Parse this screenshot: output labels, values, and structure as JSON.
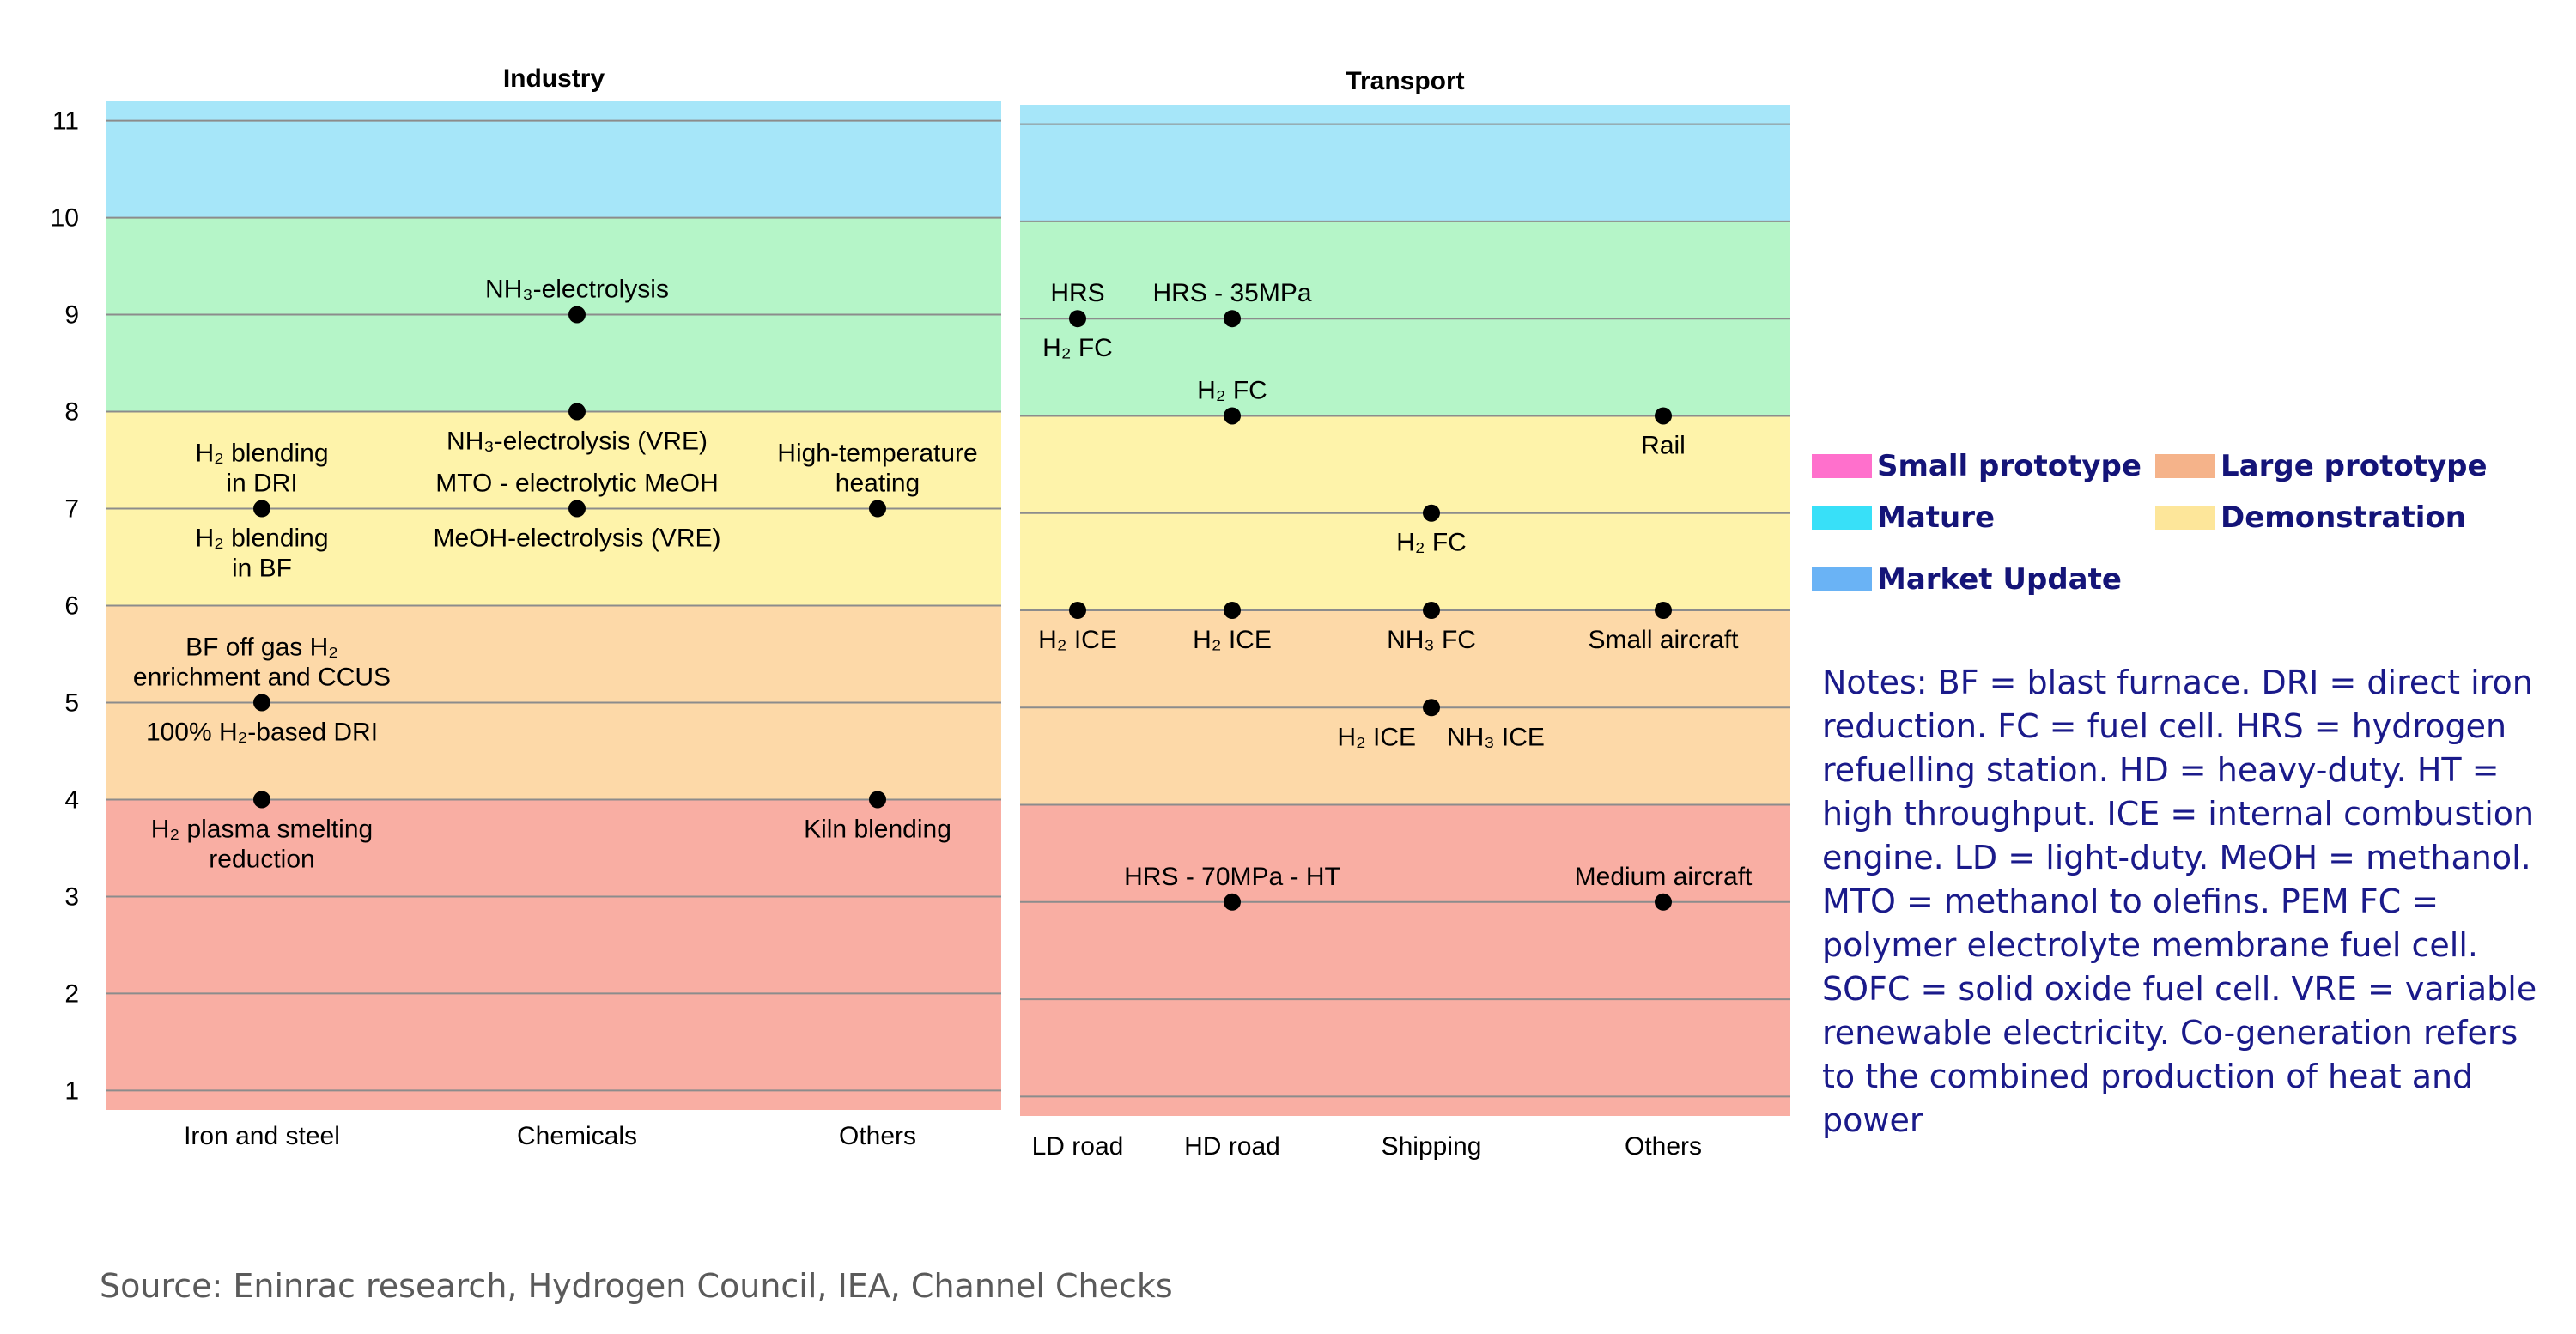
{
  "chart_data": {
    "type": "scatter",
    "y_axis": {
      "ticks": [
        "1",
        "2",
        "3",
        "4",
        "5",
        "6",
        "7",
        "8",
        "9",
        "10",
        "11"
      ],
      "range": [
        0.8,
        11.2
      ]
    },
    "bands": [
      {
        "name": "Small prototype",
        "from": 0.8,
        "to": 4,
        "color": "#f9aea3"
      },
      {
        "name": "Large prototype",
        "from": 4,
        "to": 6,
        "color": "#fdd9a8"
      },
      {
        "name": "Demonstration",
        "from": 6,
        "to": 8,
        "color": "#fef3aa"
      },
      {
        "name": "Mature",
        "from": 8,
        "to": 10,
        "color": "#b5f5c8"
      },
      {
        "name": "Market Update",
        "from": 10,
        "to": 11.2,
        "color": "#a6e6f9"
      }
    ],
    "panels": [
      {
        "title": "Industry",
        "categories": [
          "Iron and steel",
          "Chemicals",
          "Others"
        ],
        "points": [
          {
            "category": 0,
            "y": 7,
            "labels": [
              {
                "text": "H₂ blending\nin DRI",
                "pos": "above"
              },
              {
                "text": "H₂ blending\nin BF",
                "pos": "below"
              }
            ]
          },
          {
            "category": 0,
            "y": 5,
            "labels": [
              {
                "text": "BF off gas H₂\nenrichment and CCUS",
                "pos": "above"
              },
              {
                "text": "100% H₂-based DRI",
                "pos": "below"
              }
            ]
          },
          {
            "category": 0,
            "y": 4,
            "labels": [
              {
                "text": "H₂ plasma smelting\nreduction",
                "pos": "below"
              }
            ]
          },
          {
            "category": 1,
            "y": 9,
            "labels": [
              {
                "text": "NH₃-electrolysis",
                "pos": "above"
              }
            ]
          },
          {
            "category": 1,
            "y": 8,
            "labels": [
              {
                "text": "NH₃-electrolysis (VRE)",
                "pos": "below"
              }
            ]
          },
          {
            "category": 1,
            "y": 7,
            "labels": [
              {
                "text": "MTO - electrolytic MeOH",
                "pos": "above"
              },
              {
                "text": "MeOH-electrolysis (VRE)",
                "pos": "below"
              }
            ]
          },
          {
            "category": 2,
            "y": 7,
            "labels": [
              {
                "text": "High-temperature\nheating",
                "pos": "above"
              }
            ]
          },
          {
            "category": 2,
            "y": 4,
            "labels": [
              {
                "text": "Kiln blending",
                "pos": "below"
              }
            ]
          }
        ]
      },
      {
        "title": "Transport",
        "categories": [
          "LD road",
          "HD road",
          "Shipping",
          "Others"
        ],
        "points": [
          {
            "category": 0,
            "y": 9,
            "labels": [
              {
                "text": "HRS",
                "pos": "above"
              },
              {
                "text": "H₂ FC",
                "pos": "below"
              }
            ]
          },
          {
            "category": 0,
            "y": 6,
            "labels": [
              {
                "text": "H₂ ICE",
                "pos": "below"
              }
            ]
          },
          {
            "category": 1,
            "y": 9,
            "labels": [
              {
                "text": "HRS - 35MPa",
                "pos": "above"
              }
            ]
          },
          {
            "category": 1,
            "y": 8,
            "labels": [
              {
                "text": "H₂ FC",
                "pos": "above"
              }
            ]
          },
          {
            "category": 1,
            "y": 6,
            "labels": [
              {
                "text": "H₂ ICE",
                "pos": "below"
              }
            ]
          },
          {
            "category": 1,
            "y": 3,
            "labels": [
              {
                "text": "HRS - 70MPa - HT",
                "pos": "above"
              }
            ]
          },
          {
            "category": 2,
            "y": 7,
            "labels": [
              {
                "text": "H₂ FC",
                "pos": "below"
              }
            ]
          },
          {
            "category": 2,
            "y": 6,
            "labels": [
              {
                "text": "NH₃ FC",
                "pos": "below"
              }
            ]
          },
          {
            "category": 2,
            "y": 5,
            "labels": [
              {
                "text": "H₂ ICE",
                "pos": "below-left"
              },
              {
                "text": "NH₃ ICE",
                "pos": "below-right"
              }
            ]
          },
          {
            "category": 3,
            "y": 8,
            "labels": [
              {
                "text": "Rail",
                "pos": "below"
              }
            ]
          },
          {
            "category": 3,
            "y": 6,
            "labels": [
              {
                "text": "Small aircraft",
                "pos": "below"
              }
            ]
          },
          {
            "category": 3,
            "y": 3,
            "labels": [
              {
                "text": "Medium aircraft",
                "pos": "above"
              }
            ]
          }
        ]
      }
    ]
  },
  "legend": [
    {
      "label": "Small prototype",
      "color": "#ff70cc"
    },
    {
      "label": "Large prototype",
      "color": "#f5b38a"
    },
    {
      "label": "Mature",
      "color": "#38e0f8"
    },
    {
      "label": "Demonstration",
      "color": "#fde69a"
    },
    {
      "label": "Market Update",
      "color": "#6ab3f5"
    }
  ],
  "notes": "Notes: BF = blast furnace. DRI = direct iron reduction. FC = fuel cell. HRS = hydrogen refuelling station. HD = heavy-duty. HT = high throughput. ICE = internal combustion engine. LD = light-duty. MeOH = methanol. MTO = methanol to olefins. PEM FC = polymer electrolyte membrane fuel cell. SOFC = solid oxide fuel cell. VRE = variable renewable electricity. Co-generation refers to the combined production of heat and power",
  "source": "Source: Eninrac research, Hydrogen Council, IEA, Channel Checks"
}
